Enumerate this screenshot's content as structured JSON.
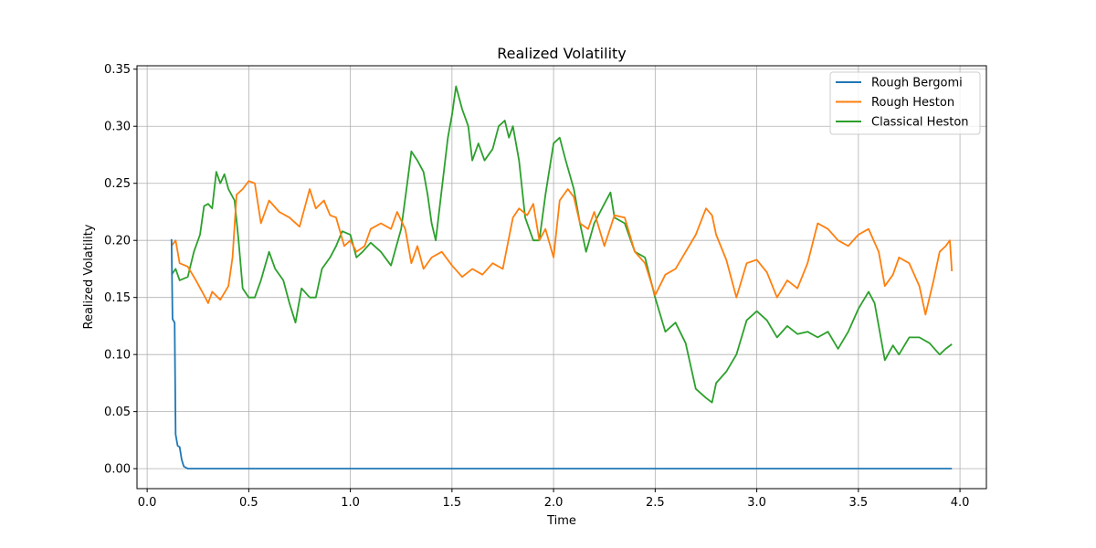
{
  "chart_data": {
    "type": "line",
    "title": "Realized Volatility",
    "xlabel": "Time",
    "ylabel": "Realized Volatility",
    "xlim": [
      -0.05,
      4.13
    ],
    "ylim": [
      -0.0175,
      0.353
    ],
    "xticks": [
      0.0,
      0.5,
      1.0,
      1.5,
      2.0,
      2.5,
      3.0,
      3.5,
      4.0
    ],
    "xtick_labels": [
      "0.0",
      "0.5",
      "1.0",
      "1.5",
      "2.0",
      "2.5",
      "3.0",
      "3.5",
      "4.0"
    ],
    "yticks": [
      0.0,
      0.05,
      0.1,
      0.15,
      0.2,
      0.25,
      0.3,
      0.35
    ],
    "ytick_labels": [
      "0.00",
      "0.05",
      "0.10",
      "0.15",
      "0.20",
      "0.25",
      "0.30",
      "0.35"
    ],
    "grid": true,
    "legend_position": "top-right",
    "series": [
      {
        "name": "Rough Bergomi",
        "color": "#1f77b4",
        "points": [
          [
            0.12,
            0.201
          ],
          [
            0.125,
            0.131
          ],
          [
            0.135,
            0.128
          ],
          [
            0.14,
            0.03
          ],
          [
            0.15,
            0.02
          ],
          [
            0.16,
            0.019
          ],
          [
            0.17,
            0.008
          ],
          [
            0.18,
            0.002
          ],
          [
            0.19,
            0.001
          ],
          [
            0.2,
            0.0
          ],
          [
            0.3,
            0.0
          ],
          [
            1.0,
            0.0
          ],
          [
            2.0,
            0.0
          ],
          [
            3.0,
            0.0
          ],
          [
            3.96,
            0.0
          ]
        ]
      },
      {
        "name": "Rough Heston",
        "color": "#ff7f0e",
        "points": [
          [
            0.12,
            0.195
          ],
          [
            0.14,
            0.2
          ],
          [
            0.16,
            0.18
          ],
          [
            0.2,
            0.177
          ],
          [
            0.24,
            0.165
          ],
          [
            0.28,
            0.152
          ],
          [
            0.3,
            0.145
          ],
          [
            0.32,
            0.155
          ],
          [
            0.36,
            0.148
          ],
          [
            0.4,
            0.16
          ],
          [
            0.42,
            0.185
          ],
          [
            0.44,
            0.24
          ],
          [
            0.47,
            0.245
          ],
          [
            0.5,
            0.252
          ],
          [
            0.53,
            0.25
          ],
          [
            0.56,
            0.215
          ],
          [
            0.6,
            0.235
          ],
          [
            0.65,
            0.225
          ],
          [
            0.7,
            0.22
          ],
          [
            0.75,
            0.212
          ],
          [
            0.8,
            0.245
          ],
          [
            0.83,
            0.228
          ],
          [
            0.87,
            0.235
          ],
          [
            0.9,
            0.222
          ],
          [
            0.93,
            0.22
          ],
          [
            0.97,
            0.195
          ],
          [
            1.0,
            0.2
          ],
          [
            1.03,
            0.19
          ],
          [
            1.07,
            0.195
          ],
          [
            1.1,
            0.21
          ],
          [
            1.15,
            0.215
          ],
          [
            1.2,
            0.21
          ],
          [
            1.23,
            0.225
          ],
          [
            1.27,
            0.21
          ],
          [
            1.3,
            0.18
          ],
          [
            1.33,
            0.195
          ],
          [
            1.36,
            0.175
          ],
          [
            1.4,
            0.185
          ],
          [
            1.45,
            0.19
          ],
          [
            1.5,
            0.178
          ],
          [
            1.55,
            0.168
          ],
          [
            1.6,
            0.175
          ],
          [
            1.65,
            0.17
          ],
          [
            1.7,
            0.18
          ],
          [
            1.75,
            0.175
          ],
          [
            1.8,
            0.22
          ],
          [
            1.83,
            0.228
          ],
          [
            1.87,
            0.222
          ],
          [
            1.9,
            0.232
          ],
          [
            1.93,
            0.2
          ],
          [
            1.96,
            0.21
          ],
          [
            2.0,
            0.185
          ],
          [
            2.03,
            0.235
          ],
          [
            2.07,
            0.245
          ],
          [
            2.1,
            0.238
          ],
          [
            2.13,
            0.215
          ],
          [
            2.17,
            0.21
          ],
          [
            2.2,
            0.225
          ],
          [
            2.25,
            0.195
          ],
          [
            2.3,
            0.222
          ],
          [
            2.35,
            0.22
          ],
          [
            2.4,
            0.19
          ],
          [
            2.45,
            0.18
          ],
          [
            2.5,
            0.152
          ],
          [
            2.55,
            0.17
          ],
          [
            2.6,
            0.175
          ],
          [
            2.65,
            0.19
          ],
          [
            2.7,
            0.205
          ],
          [
            2.75,
            0.228
          ],
          [
            2.78,
            0.222
          ],
          [
            2.8,
            0.205
          ],
          [
            2.85,
            0.183
          ],
          [
            2.9,
            0.15
          ],
          [
            2.95,
            0.18
          ],
          [
            3.0,
            0.183
          ],
          [
            3.05,
            0.172
          ],
          [
            3.1,
            0.15
          ],
          [
            3.15,
            0.165
          ],
          [
            3.2,
            0.158
          ],
          [
            3.25,
            0.18
          ],
          [
            3.3,
            0.215
          ],
          [
            3.35,
            0.21
          ],
          [
            3.4,
            0.2
          ],
          [
            3.45,
            0.195
          ],
          [
            3.5,
            0.205
          ],
          [
            3.55,
            0.21
          ],
          [
            3.6,
            0.19
          ],
          [
            3.63,
            0.16
          ],
          [
            3.67,
            0.17
          ],
          [
            3.7,
            0.185
          ],
          [
            3.75,
            0.18
          ],
          [
            3.8,
            0.16
          ],
          [
            3.83,
            0.135
          ],
          [
            3.87,
            0.165
          ],
          [
            3.9,
            0.19
          ],
          [
            3.93,
            0.195
          ],
          [
            3.95,
            0.2
          ],
          [
            3.96,
            0.173
          ]
        ]
      },
      {
        "name": "Classical Heston",
        "color": "#2ca02c",
        "points": [
          [
            0.12,
            0.17
          ],
          [
            0.14,
            0.175
          ],
          [
            0.16,
            0.165
          ],
          [
            0.2,
            0.168
          ],
          [
            0.23,
            0.19
          ],
          [
            0.26,
            0.205
          ],
          [
            0.28,
            0.23
          ],
          [
            0.3,
            0.232
          ],
          [
            0.32,
            0.228
          ],
          [
            0.34,
            0.26
          ],
          [
            0.36,
            0.25
          ],
          [
            0.38,
            0.258
          ],
          [
            0.4,
            0.245
          ],
          [
            0.43,
            0.235
          ],
          [
            0.45,
            0.2
          ],
          [
            0.47,
            0.158
          ],
          [
            0.5,
            0.15
          ],
          [
            0.53,
            0.15
          ],
          [
            0.56,
            0.165
          ],
          [
            0.6,
            0.19
          ],
          [
            0.63,
            0.175
          ],
          [
            0.67,
            0.165
          ],
          [
            0.7,
            0.145
          ],
          [
            0.73,
            0.128
          ],
          [
            0.76,
            0.158
          ],
          [
            0.8,
            0.15
          ],
          [
            0.83,
            0.15
          ],
          [
            0.86,
            0.175
          ],
          [
            0.9,
            0.185
          ],
          [
            0.93,
            0.195
          ],
          [
            0.96,
            0.208
          ],
          [
            1.0,
            0.205
          ],
          [
            1.03,
            0.185
          ],
          [
            1.06,
            0.19
          ],
          [
            1.1,
            0.198
          ],
          [
            1.15,
            0.19
          ],
          [
            1.2,
            0.178
          ],
          [
            1.25,
            0.21
          ],
          [
            1.28,
            0.25
          ],
          [
            1.3,
            0.278
          ],
          [
            1.33,
            0.27
          ],
          [
            1.36,
            0.26
          ],
          [
            1.38,
            0.24
          ],
          [
            1.4,
            0.215
          ],
          [
            1.42,
            0.2
          ],
          [
            1.45,
            0.245
          ],
          [
            1.48,
            0.29
          ],
          [
            1.5,
            0.31
          ],
          [
            1.52,
            0.335
          ],
          [
            1.55,
            0.315
          ],
          [
            1.58,
            0.3
          ],
          [
            1.6,
            0.27
          ],
          [
            1.63,
            0.285
          ],
          [
            1.66,
            0.27
          ],
          [
            1.7,
            0.28
          ],
          [
            1.73,
            0.3
          ],
          [
            1.76,
            0.305
          ],
          [
            1.78,
            0.29
          ],
          [
            1.8,
            0.3
          ],
          [
            1.83,
            0.27
          ],
          [
            1.86,
            0.22
          ],
          [
            1.9,
            0.2
          ],
          [
            1.93,
            0.2
          ],
          [
            1.96,
            0.24
          ],
          [
            2.0,
            0.285
          ],
          [
            2.03,
            0.29
          ],
          [
            2.06,
            0.27
          ],
          [
            2.1,
            0.245
          ],
          [
            2.13,
            0.215
          ],
          [
            2.16,
            0.19
          ],
          [
            2.2,
            0.215
          ],
          [
            2.25,
            0.232
          ],
          [
            2.28,
            0.242
          ],
          [
            2.3,
            0.22
          ],
          [
            2.35,
            0.215
          ],
          [
            2.4,
            0.19
          ],
          [
            2.45,
            0.185
          ],
          [
            2.5,
            0.15
          ],
          [
            2.55,
            0.12
          ],
          [
            2.6,
            0.128
          ],
          [
            2.65,
            0.11
          ],
          [
            2.7,
            0.07
          ],
          [
            2.75,
            0.062
          ],
          [
            2.78,
            0.058
          ],
          [
            2.8,
            0.075
          ],
          [
            2.85,
            0.085
          ],
          [
            2.9,
            0.1
          ],
          [
            2.95,
            0.13
          ],
          [
            3.0,
            0.138
          ],
          [
            3.05,
            0.13
          ],
          [
            3.1,
            0.115
          ],
          [
            3.15,
            0.125
          ],
          [
            3.2,
            0.118
          ],
          [
            3.25,
            0.12
          ],
          [
            3.3,
            0.115
          ],
          [
            3.35,
            0.12
          ],
          [
            3.4,
            0.105
          ],
          [
            3.45,
            0.12
          ],
          [
            3.5,
            0.14
          ],
          [
            3.55,
            0.155
          ],
          [
            3.58,
            0.145
          ],
          [
            3.6,
            0.125
          ],
          [
            3.63,
            0.095
          ],
          [
            3.67,
            0.108
          ],
          [
            3.7,
            0.1
          ],
          [
            3.75,
            0.115
          ],
          [
            3.8,
            0.115
          ],
          [
            3.85,
            0.11
          ],
          [
            3.9,
            0.1
          ],
          [
            3.93,
            0.105
          ],
          [
            3.96,
            0.109
          ]
        ]
      }
    ]
  }
}
